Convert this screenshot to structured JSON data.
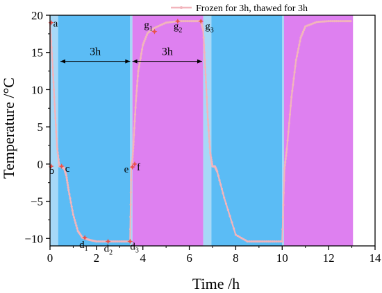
{
  "chart_data": {
    "type": "line",
    "xlabel": "Time /h",
    "ylabel": "Temperature /°C",
    "xlim": [
      0,
      14
    ],
    "ylim": [
      -11,
      20
    ],
    "xticks": [
      0,
      2,
      4,
      6,
      8,
      10,
      12,
      14
    ],
    "yticks": [
      -10,
      -5,
      0,
      5,
      10,
      15,
      20
    ],
    "legend": {
      "label": "Frozen for 3h, thawed for 3h",
      "placement": "top-right"
    },
    "colors": {
      "series": "#f2b5bc",
      "marker": "#e8524a",
      "frozen": "#5bbcf5",
      "transition": "#a7d8f7",
      "thawed": "#de80f0"
    },
    "regions": [
      {
        "type": "transition",
        "x": [
          0.0,
          0.35
        ]
      },
      {
        "type": "frozen",
        "x": [
          0.35,
          3.45
        ]
      },
      {
        "type": "transition",
        "x": [
          3.45,
          3.55
        ]
      },
      {
        "type": "thawed",
        "x": [
          3.55,
          6.6
        ]
      },
      {
        "type": "transition",
        "x": [
          6.6,
          6.95
        ]
      },
      {
        "type": "frozen",
        "x": [
          6.95,
          10.0
        ]
      },
      {
        "type": "transition",
        "x": [
          10.0,
          10.08
        ]
      },
      {
        "type": "thawed",
        "x": [
          10.08,
          13.05
        ]
      }
    ],
    "series": [
      {
        "x": [
          0.0,
          0.1,
          0.2,
          0.3,
          0.4,
          0.5,
          0.55,
          0.6,
          0.7,
          0.8,
          1.0,
          1.2,
          1.4,
          1.7,
          2.0,
          2.5,
          3.0,
          3.45,
          3.5,
          3.55,
          3.6,
          3.7,
          3.8,
          4.0,
          4.2,
          4.5,
          5.0,
          5.5,
          6.0,
          6.5,
          6.6,
          6.7,
          6.8,
          6.9,
          7.0,
          7.1,
          7.2,
          7.5,
          8.0,
          8.5,
          9.0,
          9.5,
          10.0,
          10.1,
          10.2,
          10.4,
          10.6,
          10.8,
          11.0,
          11.5,
          12.0,
          12.5,
          13.0
        ],
        "y": [
          19.0,
          14.0,
          8.0,
          2.5,
          -0.3,
          -0.2,
          -0.5,
          -0.5,
          -1.5,
          -3.5,
          -6.8,
          -9.0,
          -9.9,
          -10.2,
          -10.4,
          -10.4,
          -10.4,
          -10.4,
          -0.5,
          0.5,
          3.0,
          8.5,
          12.5,
          16.0,
          17.6,
          18.3,
          19.0,
          19.2,
          19.2,
          19.2,
          18.0,
          12.0,
          6.0,
          1.5,
          -0.3,
          -0.3,
          -1.0,
          -4.5,
          -9.5,
          -10.4,
          -10.4,
          -10.4,
          -10.4,
          -0.6,
          2.0,
          9.0,
          14.0,
          17.0,
          18.5,
          19.1,
          19.2,
          19.2,
          19.2
        ]
      }
    ],
    "annotations": [
      {
        "base": "a",
        "sub": "",
        "x": 0.05,
        "y": 19.0
      },
      {
        "base": "b",
        "sub": "",
        "x": 0.05,
        "y": -0.3
      },
      {
        "base": "c",
        "sub": "",
        "x": 0.5,
        "y": -0.3
      },
      {
        "base": "d",
        "sub": "1",
        "x": 1.5,
        "y": -9.9
      },
      {
        "base": "d",
        "sub": "2",
        "x": 2.5,
        "y": -10.4
      },
      {
        "base": "d",
        "sub": "3",
        "x": 3.45,
        "y": -10.4
      },
      {
        "base": "e",
        "sub": "",
        "x": 3.55,
        "y": -0.4
      },
      {
        "base": "f",
        "sub": "",
        "x": 3.65,
        "y": 0.0
      },
      {
        "base": "g",
        "sub": "1",
        "x": 4.5,
        "y": 17.8
      },
      {
        "base": "g",
        "sub": "2",
        "x": 5.5,
        "y": 19.2
      },
      {
        "base": "g",
        "sub": "3",
        "x": 6.5,
        "y": 19.2
      }
    ],
    "duration_labels": [
      {
        "text": "3h",
        "x_start": 0.45,
        "x_end": 3.45,
        "y": 13.8
      },
      {
        "text": "3h",
        "x_start": 3.55,
        "x_end": 6.55,
        "y": 13.8
      }
    ]
  }
}
